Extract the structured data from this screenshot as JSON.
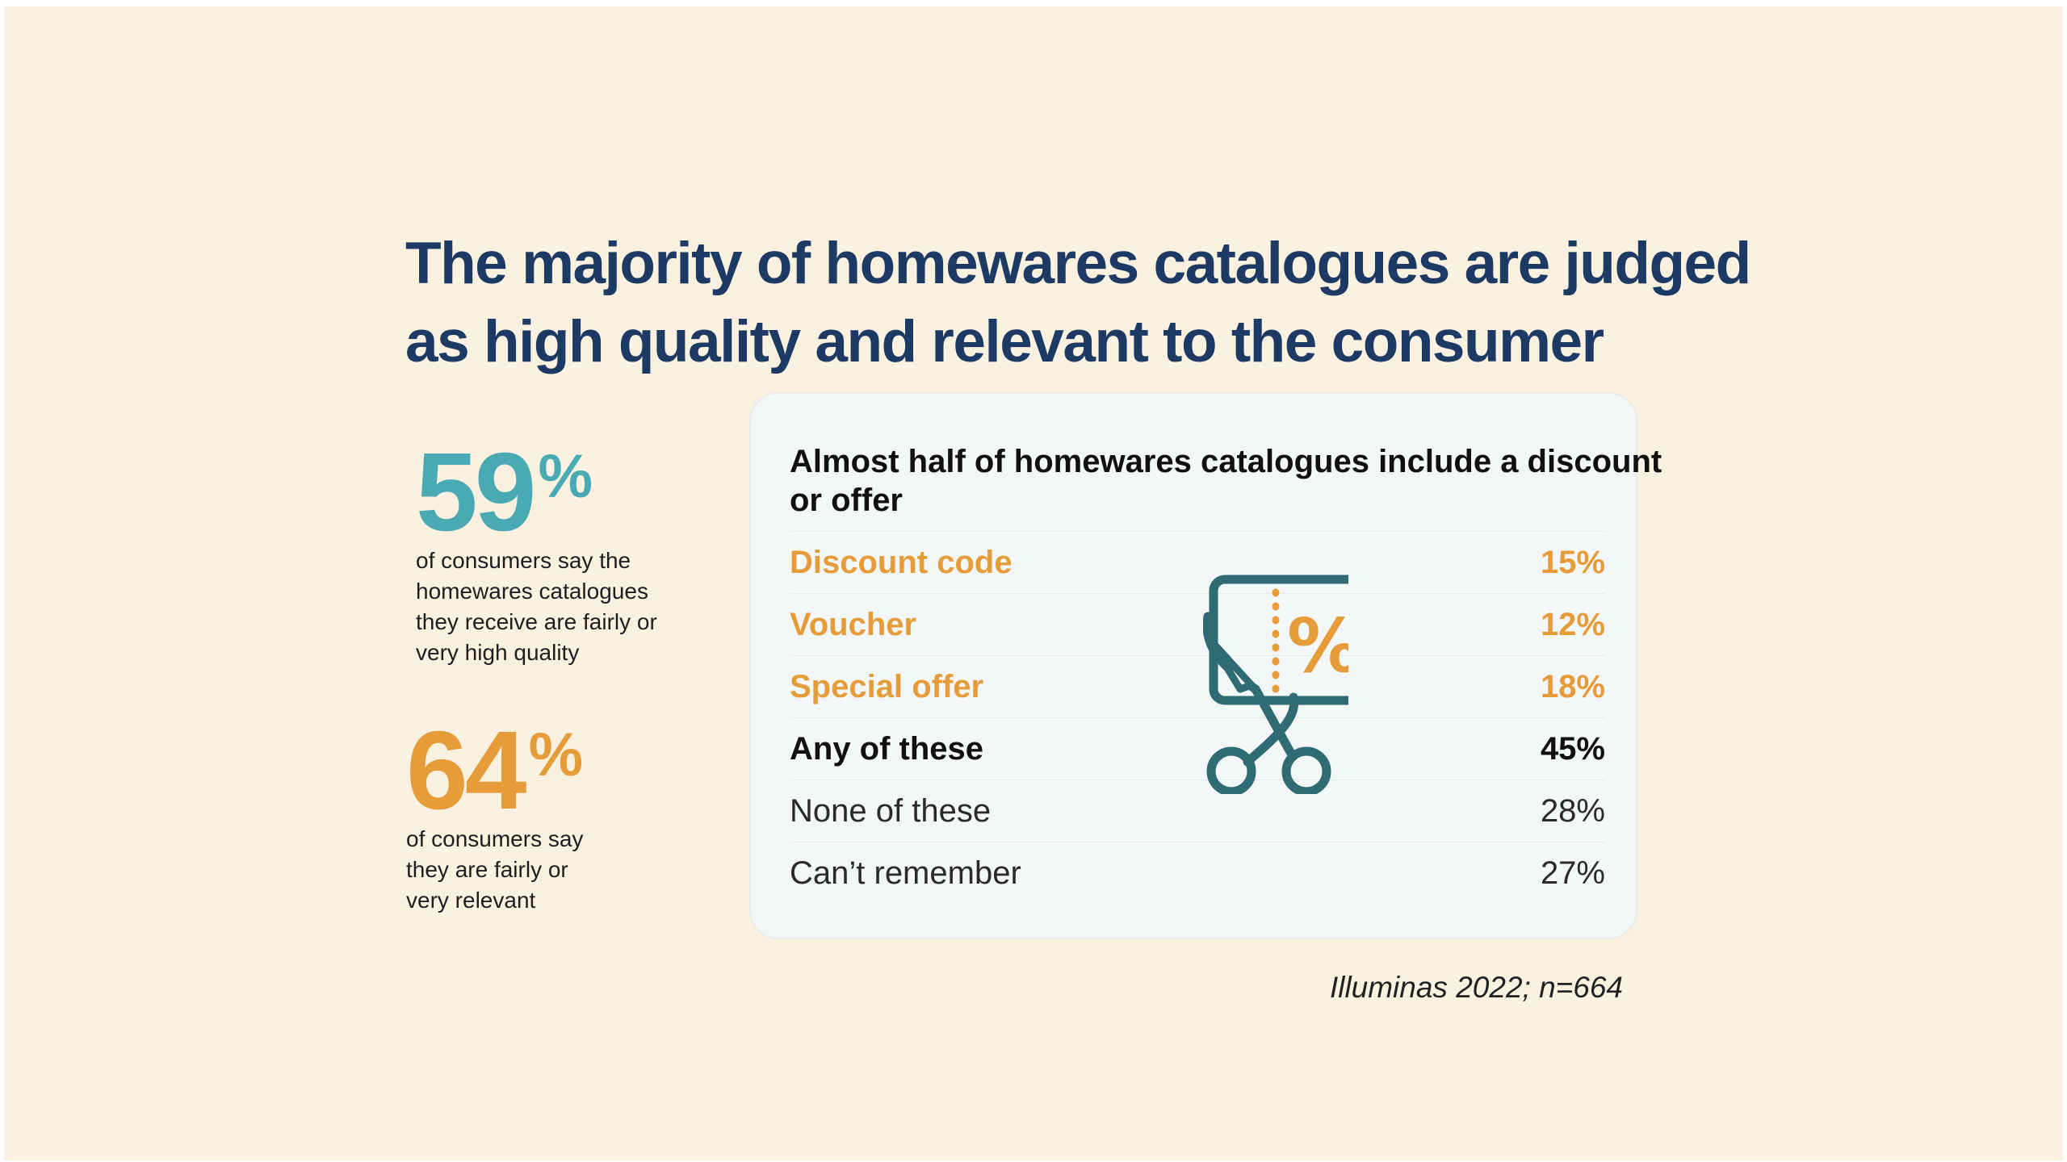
{
  "headline": {
    "line1": "The majority of homewares catalogues are judged",
    "line2": "as high quality and relevant to the consumer"
  },
  "stats": [
    {
      "value": "59",
      "unit": "%",
      "description": [
        "of consumers say the",
        "homewares catalogues",
        "they receive are fairly or",
        "very high quality"
      ]
    },
    {
      "value": "64",
      "unit": "%",
      "description": [
        "of consumers say",
        "they are fairly or",
        "very relevant"
      ]
    }
  ],
  "card": {
    "title_line1": "Almost half of homewares catalogues include a discount",
    "title_line2": "or offer",
    "rows": [
      {
        "label": "Discount code",
        "value": "15%"
      },
      {
        "label": "Voucher",
        "value": "12%"
      },
      {
        "label": "Special offer",
        "value": "18%"
      },
      {
        "label": "Any of these",
        "value": "45%"
      },
      {
        "label": "None of these",
        "value": "28%"
      },
      {
        "label": "Can’t remember",
        "value": "27%"
      }
    ],
    "icon": "coupon-scissors-icon",
    "icon_glyph": "%"
  },
  "source": "Illuminas 2022; n=664",
  "colors": {
    "background": "#faf1e1",
    "navy": "#1c3a64",
    "teal": "#4aaab4",
    "orange": "#e59c39",
    "icon_teal": "#2f6b72"
  }
}
